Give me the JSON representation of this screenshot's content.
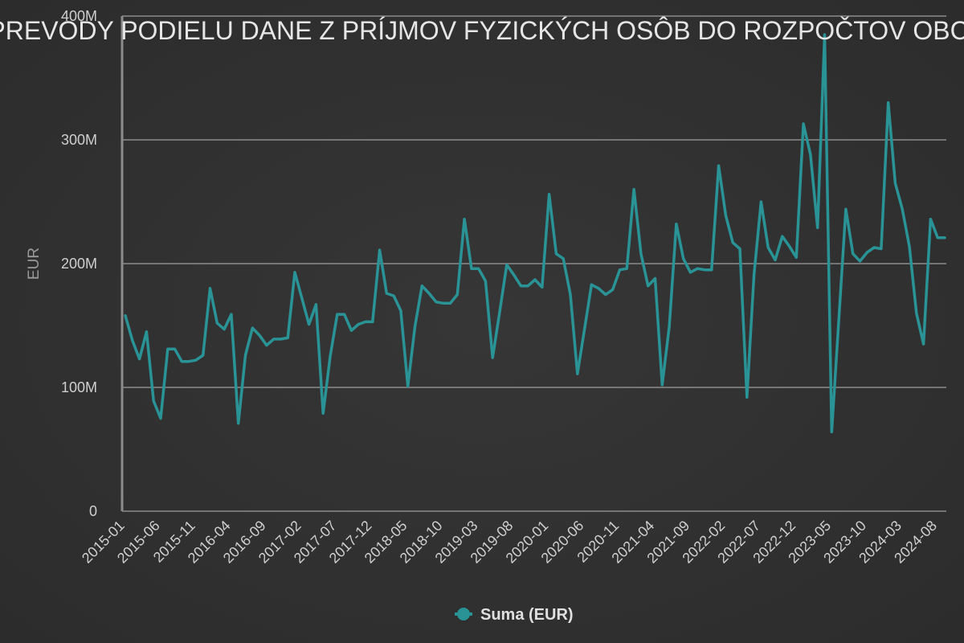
{
  "chart_data": {
    "type": "line",
    "title": "PREVODY PODIELU DANE Z PRÍJMOV FYZICKÝCH OSÔB DO ROZPOČTOV OBCÍ",
    "ylabel": "EUR",
    "xlabel": "",
    "ylim": [
      0,
      400000000
    ],
    "yticks": [
      0,
      100000000,
      200000000,
      300000000,
      400000000
    ],
    "ytick_labels": [
      "0",
      "100M",
      "200M",
      "300M",
      "400M"
    ],
    "xtick_labels": [
      "2015-01",
      "2015-06",
      "2015-11",
      "2016-04",
      "2016-09",
      "2017-02",
      "2017-07",
      "2017-12",
      "2018-05",
      "2018-10",
      "2019-03",
      "2019-08",
      "2020-01",
      "2020-06",
      "2020-11",
      "2021-04",
      "2021-09",
      "2022-02",
      "2022-07",
      "2022-12",
      "2023-05",
      "2023-10",
      "2024-03",
      "2024-08"
    ],
    "grid": true,
    "legend_position": "bottom-center",
    "accent_color": "#2a9396",
    "series": [
      {
        "name": "Suma (EUR)",
        "x": [
          "2015-01",
          "2015-02",
          "2015-03",
          "2015-04",
          "2015-05",
          "2015-06",
          "2015-07",
          "2015-08",
          "2015-09",
          "2015-10",
          "2015-11",
          "2015-12",
          "2016-01",
          "2016-02",
          "2016-03",
          "2016-04",
          "2016-05",
          "2016-06",
          "2016-07",
          "2016-08",
          "2016-09",
          "2016-10",
          "2016-11",
          "2016-12",
          "2017-01",
          "2017-02",
          "2017-03",
          "2017-04",
          "2017-05",
          "2017-06",
          "2017-07",
          "2017-08",
          "2017-09",
          "2017-10",
          "2017-11",
          "2017-12",
          "2018-01",
          "2018-02",
          "2018-03",
          "2018-04",
          "2018-05",
          "2018-06",
          "2018-07",
          "2018-08",
          "2018-09",
          "2018-10",
          "2018-11",
          "2018-12",
          "2019-01",
          "2019-02",
          "2019-03",
          "2019-04",
          "2019-05",
          "2019-06",
          "2019-07",
          "2019-08",
          "2019-09",
          "2019-10",
          "2019-11",
          "2019-12",
          "2020-01",
          "2020-02",
          "2020-03",
          "2020-04",
          "2020-05",
          "2020-06",
          "2020-07",
          "2020-08",
          "2020-09",
          "2020-10",
          "2020-11",
          "2020-12",
          "2021-01",
          "2021-02",
          "2021-03",
          "2021-04",
          "2021-05",
          "2021-06",
          "2021-07",
          "2021-08",
          "2021-09",
          "2021-10",
          "2021-11",
          "2021-12",
          "2022-01",
          "2022-02",
          "2022-03",
          "2022-04",
          "2022-05",
          "2022-06",
          "2022-07",
          "2022-08",
          "2022-09",
          "2022-10",
          "2022-11",
          "2022-12",
          "2023-01",
          "2023-02",
          "2023-03",
          "2023-04",
          "2023-05",
          "2023-06",
          "2023-07",
          "2023-08",
          "2023-09",
          "2023-10",
          "2023-11",
          "2023-12",
          "2024-01",
          "2024-02",
          "2024-03",
          "2024-04",
          "2024-05",
          "2024-06",
          "2024-07",
          "2024-08",
          "2024-09"
        ],
        "values": [
          158000000,
          138000000,
          123000000,
          145000000,
          89000000,
          75000000,
          131000000,
          131000000,
          121000000,
          121000000,
          122000000,
          126000000,
          180000000,
          152000000,
          147000000,
          159000000,
          71000000,
          126000000,
          148000000,
          142000000,
          134000000,
          139000000,
          139000000,
          140000000,
          193000000,
          172000000,
          151000000,
          167000000,
          79000000,
          125000000,
          159000000,
          159000000,
          146000000,
          151000000,
          153000000,
          153000000,
          211000000,
          176000000,
          174000000,
          162000000,
          101000000,
          149000000,
          182000000,
          176000000,
          169000000,
          168000000,
          168000000,
          175000000,
          236000000,
          196000000,
          196000000,
          186000000,
          124000000,
          161000000,
          199000000,
          191000000,
          182000000,
          182000000,
          187000000,
          181000000,
          256000000,
          208000000,
          204000000,
          175000000,
          111000000,
          147000000,
          183000000,
          180000000,
          175000000,
          179000000,
          195000000,
          196000000,
          260000000,
          208000000,
          182000000,
          188000000,
          102000000,
          149000000,
          232000000,
          204000000,
          193000000,
          196000000,
          195000000,
          195000000,
          279000000,
          239000000,
          217000000,
          212000000,
          92000000,
          191000000,
          250000000,
          213000000,
          203000000,
          222000000,
          214000000,
          205000000,
          313000000,
          288000000,
          229000000,
          385000000,
          64000000,
          154000000,
          244000000,
          208000000,
          202000000,
          209000000,
          213000000,
          212000000,
          330000000,
          265000000,
          244000000,
          214000000,
          160000000,
          135000000,
          236000000,
          221000000,
          221000000
        ]
      }
    ]
  }
}
